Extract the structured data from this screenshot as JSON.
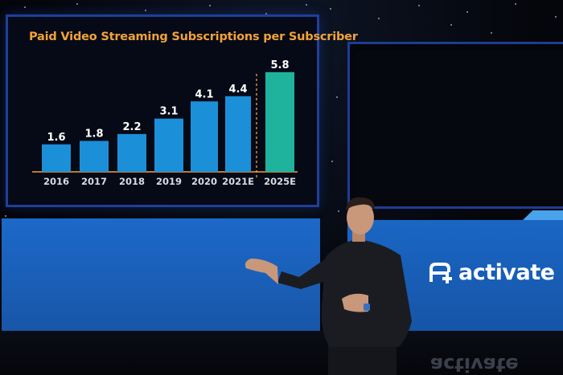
{
  "chart_data": {
    "type": "bar",
    "title": "Paid Video Streaming Subscriptions per Subscriber",
    "categories": [
      "2016",
      "2017",
      "2018",
      "2019",
      "2020",
      "2021E",
      "2025E"
    ],
    "values": [
      1.6,
      1.8,
      2.2,
      3.1,
      4.1,
      4.4,
      5.8
    ],
    "value_labels": [
      "1.6",
      "1.8",
      "2.2",
      "3.1",
      "4.1",
      "4.4",
      "5.8"
    ],
    "ylim": [
      0,
      6.2
    ],
    "grid": false,
    "legend": "none",
    "colors": {
      "historical": "#1c8fd9",
      "forecast": "#1fb39e",
      "title": "#f2a23a",
      "baseline": "#f2a23a",
      "divider": "#f2a23a"
    },
    "forecast_from_index": 6
  },
  "brand": {
    "name": "activate",
    "icon": "activate-logo-icon",
    "color": "#ffffff"
  },
  "floor_reflection": "activate"
}
